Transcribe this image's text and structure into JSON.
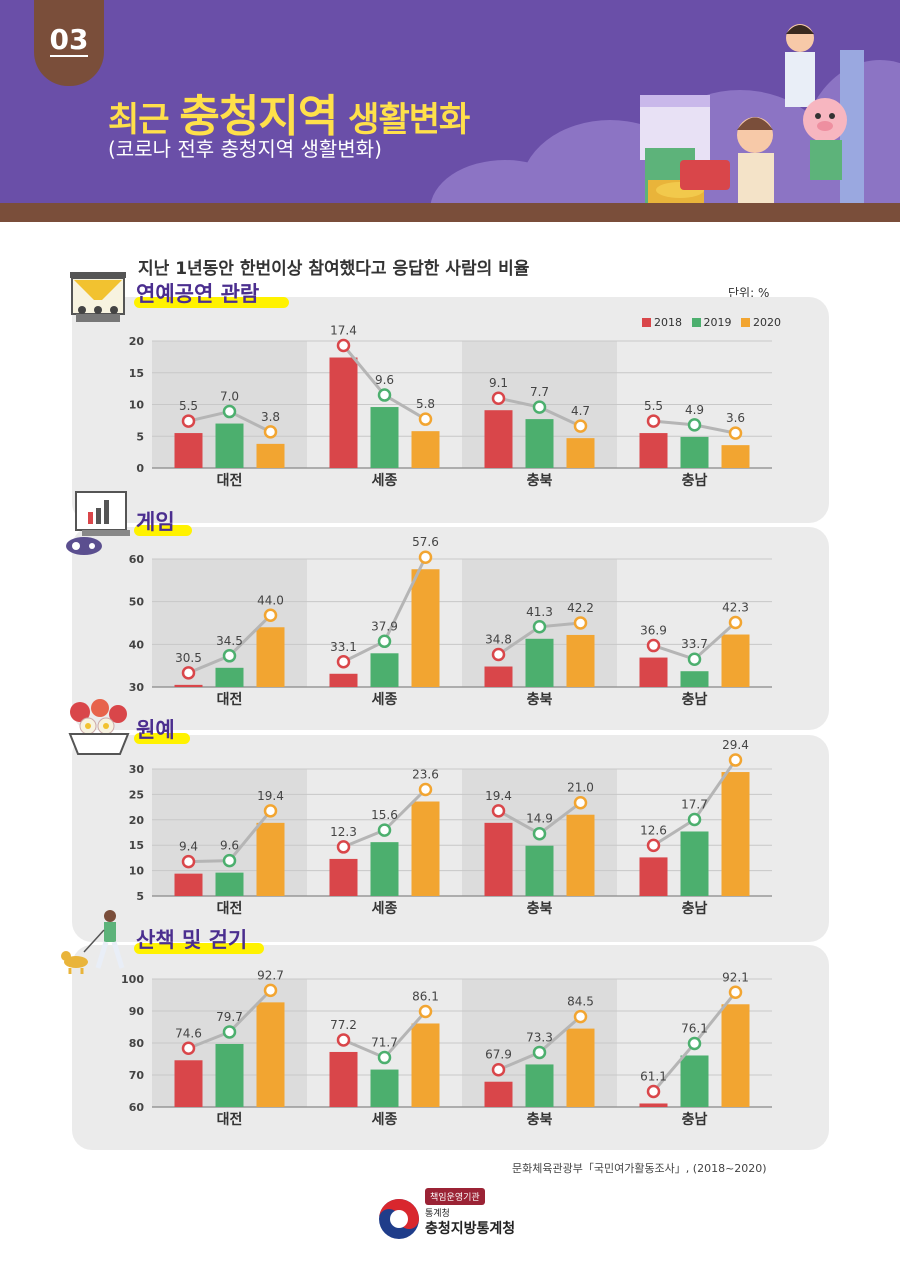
{
  "header": {
    "badge": "03",
    "title_pre": "최근 ",
    "title_big": "충청지역",
    "title_post": " 생활변화",
    "subtitle": "(코로나 전후 충청지역 생활변화)"
  },
  "question": "지난 1년동안 한번이상 참여했다고 응답한 사람의 비율",
  "unit": "단위: %",
  "legend": [
    {
      "name": "2018",
      "color": "#d9464a"
    },
    {
      "name": "2019",
      "color": "#4caf6e"
    },
    {
      "name": "2020",
      "color": "#f2a531"
    }
  ],
  "colors": {
    "line": "#b5b5b5",
    "panel": "#ebebeb",
    "shade": "#dcdcdc",
    "title": "#4b2e8f",
    "highlight": "#fff200"
  },
  "icons": [
    "theater-stage-icon",
    "game-monitor-icon",
    "flower-basket-icon",
    "dog-walking-icon",
    "government-logo-icon"
  ],
  "chart_data": [
    {
      "type": "bar",
      "title": "연예공연 관람",
      "categories": [
        "대전",
        "세종",
        "충북",
        "충남"
      ],
      "ylim": [
        0,
        20
      ],
      "yticks": [
        0,
        5,
        10,
        15,
        20
      ],
      "series": [
        {
          "name": "2018",
          "values": [
            5.5,
            17.4,
            9.1,
            5.5
          ]
        },
        {
          "name": "2019",
          "values": [
            7.0,
            9.6,
            7.7,
            4.9
          ]
        },
        {
          "name": "2020",
          "values": [
            3.8,
            5.8,
            4.7,
            3.6
          ]
        }
      ]
    },
    {
      "type": "bar",
      "title": "게임",
      "categories": [
        "대전",
        "세종",
        "충북",
        "충남"
      ],
      "ylim": [
        30,
        60
      ],
      "yticks": [
        30,
        40,
        50,
        60
      ],
      "series": [
        {
          "name": "2018",
          "values": [
            30.5,
            33.1,
            34.8,
            36.9
          ]
        },
        {
          "name": "2019",
          "values": [
            34.5,
            37.9,
            41.3,
            33.7
          ]
        },
        {
          "name": "2020",
          "values": [
            44.0,
            57.6,
            42.2,
            42.3
          ]
        }
      ]
    },
    {
      "type": "bar",
      "title": "원예",
      "categories": [
        "대전",
        "세종",
        "충북",
        "충남"
      ],
      "ylim": [
        5,
        30
      ],
      "yticks": [
        5,
        10,
        15,
        20,
        25,
        30
      ],
      "series": [
        {
          "name": "2018",
          "values": [
            9.4,
            12.3,
            19.4,
            12.6
          ]
        },
        {
          "name": "2019",
          "values": [
            9.6,
            15.6,
            14.9,
            17.7
          ]
        },
        {
          "name": "2020",
          "values": [
            19.4,
            23.6,
            21.0,
            29.4
          ]
        }
      ]
    },
    {
      "type": "bar",
      "title": "산책 및 걷기",
      "categories": [
        "대전",
        "세종",
        "충북",
        "충남"
      ],
      "ylim": [
        60,
        100
      ],
      "yticks": [
        60,
        70,
        80,
        90,
        100
      ],
      "series": [
        {
          "name": "2018",
          "values": [
            74.6,
            77.2,
            67.9,
            61.1
          ]
        },
        {
          "name": "2019",
          "values": [
            79.7,
            71.7,
            73.3,
            76.1
          ]
        },
        {
          "name": "2020",
          "values": [
            92.7,
            86.1,
            84.5,
            92.1
          ]
        }
      ]
    }
  ],
  "source": "문화체육관광부「국민여가활동조사」, (2018~2020)",
  "logo": {
    "tag": "책임운영기관",
    "small": "통계청",
    "org": "충청지방통계청"
  }
}
